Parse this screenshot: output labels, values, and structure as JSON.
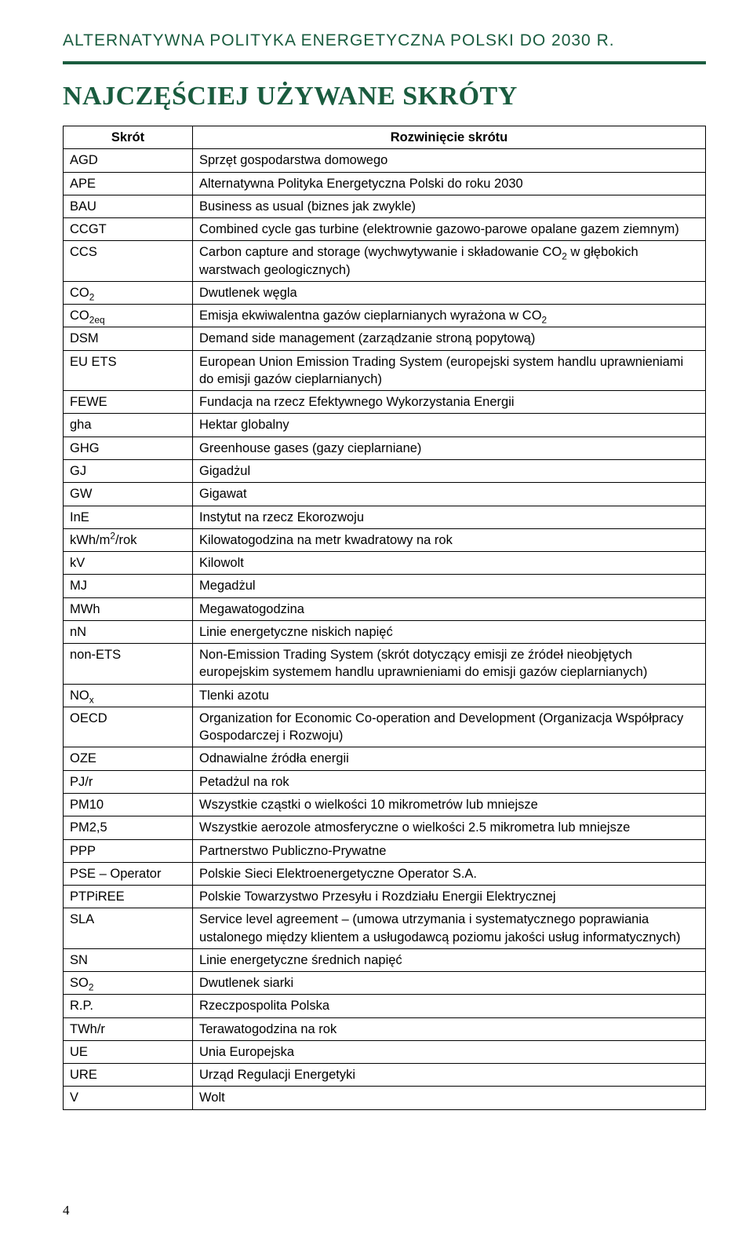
{
  "header": {
    "running_title": "ALTERNATYWNA POLITYKA ENERGETYCZNA POLSKI DO 2030 R."
  },
  "section": {
    "title": "NAJCZĘŚCIEJ UŻYWANE SKRÓTY"
  },
  "table": {
    "columns": {
      "skrot": "Skrót",
      "rozwiniecie": "Rozwinięcie skrótu"
    },
    "rows": [
      {
        "skrot": "AGD",
        "text": "Sprzęt gospodarstwa domowego"
      },
      {
        "skrot": "APE",
        "text": "Alternatywna Polityka Energetyczna Polski do roku 2030"
      },
      {
        "skrot": "BAU",
        "text": "Business as usual (biznes jak zwykle)"
      },
      {
        "skrot": "CCGT",
        "text": "Combined cycle gas turbine (elektrownie gazowo-parowe opalane gazem ziemnym)"
      },
      {
        "skrot": "CCS",
        "html": "Carbon capture and storage (wychwytywanie i składowanie CO<sub>2</sub> w głębokich warstwach geologicznych)"
      },
      {
        "skrot_html": "CO<sub>2</sub>",
        "text": "Dwutlenek węgla"
      },
      {
        "skrot_html": "CO<sub>2eq</sub>",
        "html": "Emisja ekwiwalentna gazów cieplarnianych wyrażona w CO<sub>2</sub>"
      },
      {
        "skrot": "DSM",
        "text": "Demand side management (zarządzanie stroną popytową)"
      },
      {
        "skrot": "EU ETS",
        "text": "European Union Emission Trading System (europejski system handlu uprawnieniami do emisji gazów cieplarnianych)"
      },
      {
        "skrot": "FEWE",
        "text": "Fundacja na rzecz Efektywnego Wykorzystania Energii"
      },
      {
        "skrot": "gha",
        "text": "Hektar globalny"
      },
      {
        "skrot": "GHG",
        "text": "Greenhouse gases (gazy cieplarniane)"
      },
      {
        "skrot": "GJ",
        "text": "Gigadżul"
      },
      {
        "skrot": "GW",
        "text": "Gigawat"
      },
      {
        "skrot": "InE",
        "text": "Instytut na rzecz Ekorozwoju"
      },
      {
        "skrot_html": "kWh/m<sup>2</sup>/rok",
        "text": "Kilowatogodzina na metr kwadratowy na rok"
      },
      {
        "skrot": "kV",
        "text": "Kilowolt"
      },
      {
        "skrot": "MJ",
        "text": "Megadżul"
      },
      {
        "skrot": "MWh",
        "text": "Megawatogodzina"
      },
      {
        "skrot": "nN",
        "text": "Linie energetyczne niskich napięć"
      },
      {
        "skrot": "non-ETS",
        "text": "Non-Emission Trading System (skrót dotyczący emisji ze źródeł nieobjętych europejskim systemem handlu uprawnieniami do emisji gazów cieplarnianych)"
      },
      {
        "skrot_html": "NO<sub>x</sub>",
        "text": "Tlenki azotu"
      },
      {
        "skrot": "OECD",
        "text": "Organization for Economic Co-operation and Development (Organizacja Współpracy Gospodarczej i Rozwoju)"
      },
      {
        "skrot": "OZE",
        "text": "Odnawialne źródła energii"
      },
      {
        "skrot": "PJ/r",
        "text": "Petadżul na rok"
      },
      {
        "skrot": "PM10",
        "text": "Wszystkie cząstki o wielkości 10 mikrometrów lub mniejsze"
      },
      {
        "skrot": "PM2,5",
        "text": "Wszystkie aerozole atmosferyczne o wielkości 2.5 mikrometra lub mniejsze"
      },
      {
        "skrot": "PPP",
        "text": "Partnerstwo Publiczno-Prywatne"
      },
      {
        "skrot": "PSE – Operator",
        "text": "Polskie Sieci Elektroenergetyczne Operator S.A."
      },
      {
        "skrot": "PTPiREE",
        "text": "Polskie Towarzystwo Przesyłu i Rozdziału Energii Elektrycznej"
      },
      {
        "skrot": "SLA",
        "text": "Service level agreement – (umowa utrzymania i systematycznego poprawiania ustalonego między klientem a usługodawcą poziomu jakości usług informatycznych)"
      },
      {
        "skrot": "SN",
        "text": "Linie energetyczne średnich napięć"
      },
      {
        "skrot_html": "SO<sub>2</sub>",
        "text": "Dwutlenek siarki"
      },
      {
        "skrot": "R.P.",
        "text": "Rzeczpospolita Polska"
      },
      {
        "skrot": "TWh/r",
        "text": "Terawatogodzina na rok"
      },
      {
        "skrot": "UE",
        "text": "Unia Europejska"
      },
      {
        "skrot": "URE",
        "text": "Urząd Regulacji Energetyki"
      },
      {
        "skrot": "V",
        "text": "Wolt"
      }
    ]
  },
  "page_number": "4",
  "colors": {
    "accent": "#1a5c3f",
    "text": "#000000",
    "background": "#ffffff",
    "border": "#000000"
  }
}
